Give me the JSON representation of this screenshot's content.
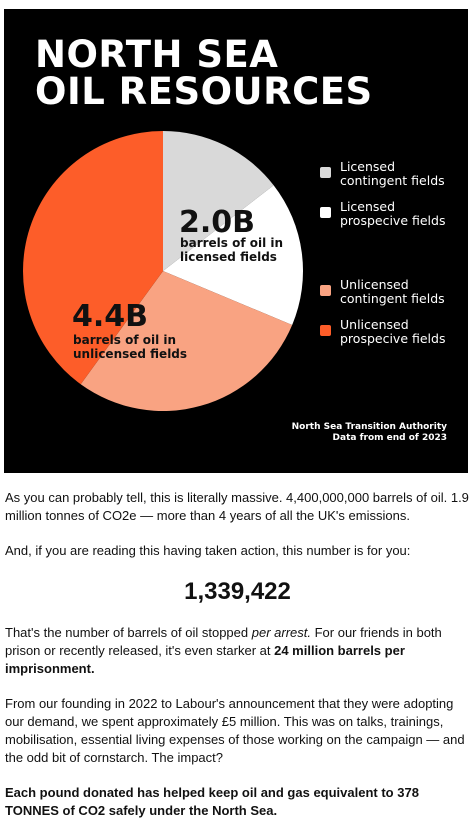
{
  "chart_data": {
    "type": "pie",
    "title_lines": [
      "NORTH SEA",
      "OIL RESOURCES"
    ],
    "slices": [
      {
        "name": "Licensed contingent fields",
        "fraction": 0.145,
        "color": "#d9d9d9"
      },
      {
        "name": "Licensed prospecive fields",
        "fraction": 0.168,
        "color": "#ffffff"
      },
      {
        "name": "Unlicensed contingent fields",
        "fraction": 0.287,
        "color": "#f9a382"
      },
      {
        "name": "Unlicensed prospecive fields",
        "fraction": 0.4,
        "color": "#fd5d29"
      }
    ],
    "legend": [
      {
        "lines": [
          "Licensed",
          "contingent fields"
        ],
        "color": "#d9d9d9"
      },
      {
        "lines": [
          "Licensed",
          "prospecive fields"
        ],
        "color": "#ffffff"
      },
      {
        "lines": [
          "Unlicensed",
          "contingent fields"
        ],
        "color": "#f9a382"
      },
      {
        "lines": [
          "Unlicensed",
          "prospecive fields"
        ],
        "color": "#fd5d29"
      }
    ],
    "licensed_value": "2.0B",
    "licensed_label_lines": [
      "barrels of oil in",
      "licensed fields"
    ],
    "unlicensed_value": "4.4B",
    "unlicensed_label_lines": [
      "barrels of oil in",
      "unlicensed fields"
    ],
    "source_lines": [
      "North Sea Transition Authority",
      "Data from end of 2023"
    ]
  },
  "article": {
    "p1": "As you can probably tell, this is literally massive. 4,400,000,000 barrels of oil. 1.9 million tonnes of CO2e — more than 4 years of all the UK's emissions.",
    "p2": "And, if you are reading this having taken action, this number is for you:",
    "counter": "1,339,422",
    "p3_start": "That's the number of barrels of oil stopped ",
    "p3_italic": "per arrest.",
    "p3_mid": " For our friends in both prison or recently released, it's even starker at ",
    "p3_bold": "24 million barrels per imprisonment.",
    "p4": "From our founding in 2022 to Labour's announcement that they were adopting our demand, we spent approximately £5 million. This was on talks, trainings, mobilisation, essential living expenses of those working on the campaign — and the odd bit of cornstarch. The impact?",
    "p5": "Each pound donated has helped keep oil and gas equivalent to 378 TONNES of CO2 safely under the North Sea."
  }
}
